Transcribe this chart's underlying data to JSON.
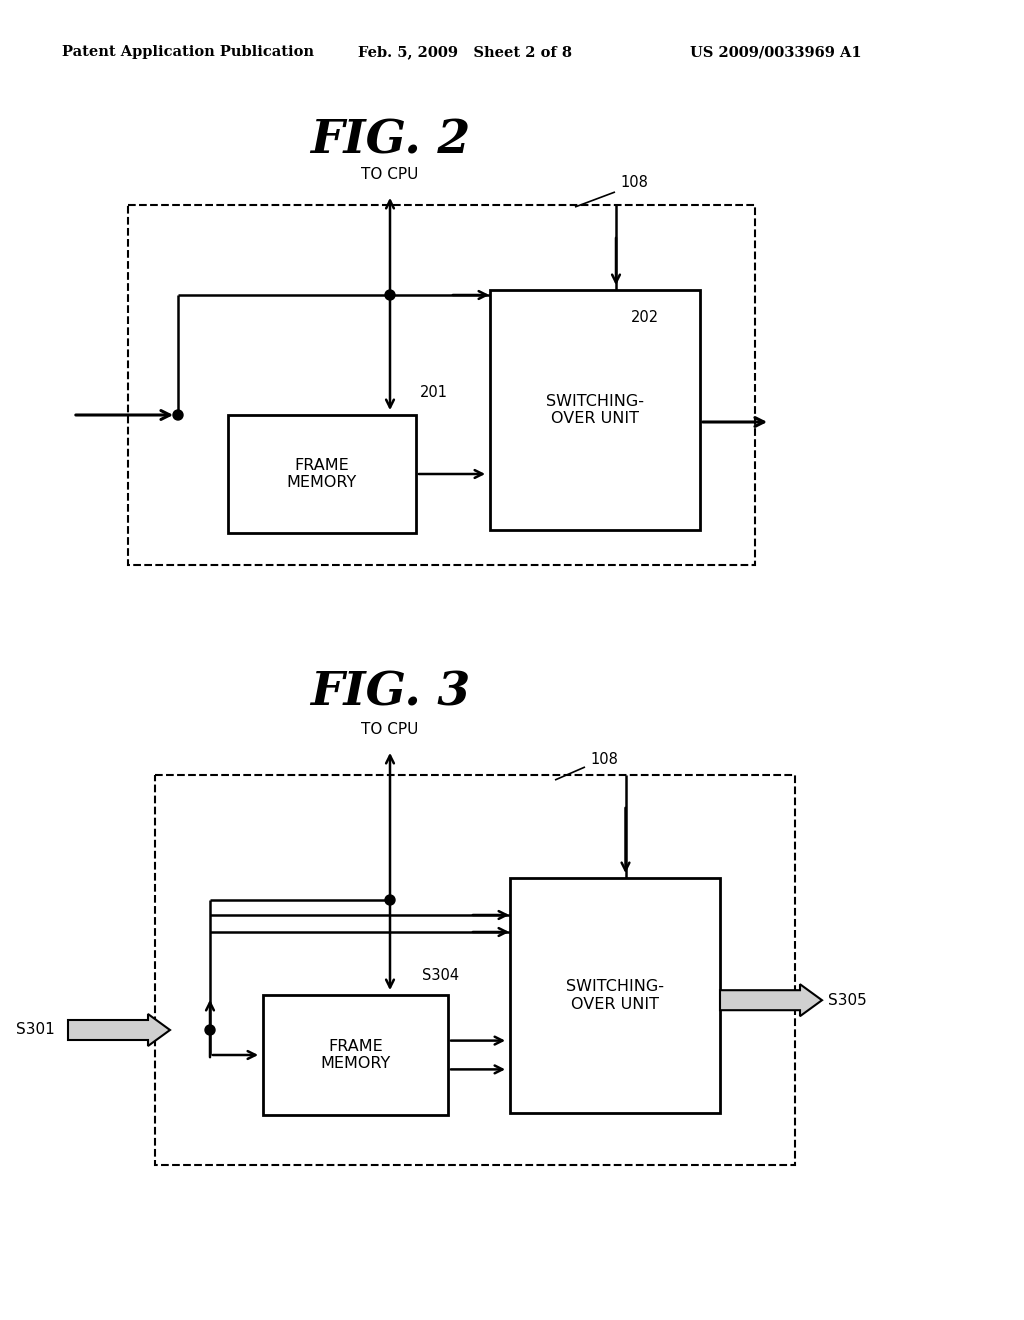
{
  "bg_color": "#ffffff",
  "header_left": "Patent Application Publication",
  "header_mid": "Feb. 5, 2009   Sheet 2 of 8",
  "header_right": "US 2009/0033969 A1",
  "fig2_title": "FIG. 2",
  "fig3_title": "FIG. 3",
  "label_to_cpu": "TO CPU",
  "label_108_fig2": "108",
  "label_108_fig3": "108",
  "label_201": "201",
  "label_202": "202",
  "label_frame_memory": "FRAME\nMEMORY",
  "label_switching_over": "SWITCHING-\nOVER UNIT",
  "label_s301": "S301",
  "label_s304": "S304",
  "label_s305": "S305"
}
